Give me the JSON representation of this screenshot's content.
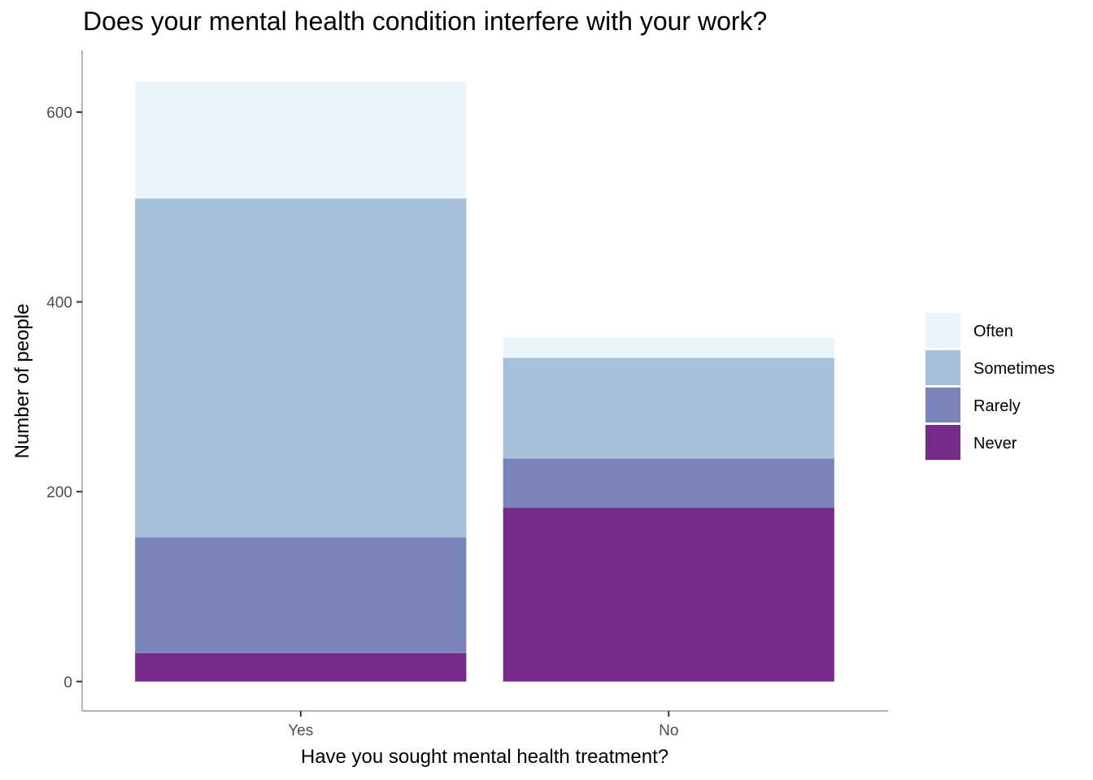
{
  "chart_data": {
    "type": "bar",
    "stacked": true,
    "title": "Does your mental health condition interfere with your work?",
    "xlabel": "Have you sought mental health treatment?",
    "ylabel": "Number of people",
    "categories": [
      "Yes",
      "No"
    ],
    "ylim": [
      -31,
      665
    ],
    "yticks": [
      0,
      200,
      400,
      600
    ],
    "grid": false,
    "legend_position": "right",
    "series": [
      {
        "name": "Never",
        "color": "#762A8A",
        "values": [
          30,
          183
        ]
      },
      {
        "name": "Rarely",
        "color": "#7B84B8",
        "values": [
          122,
          52
        ]
      },
      {
        "name": "Sometimes",
        "color": "#A7C1DC",
        "values": [
          357,
          106
        ]
      },
      {
        "name": "Often",
        "color": "#E9F5FA",
        "values": [
          123,
          21
        ]
      }
    ],
    "legend_order": [
      "Often",
      "Sometimes",
      "Rarely",
      "Never"
    ]
  }
}
